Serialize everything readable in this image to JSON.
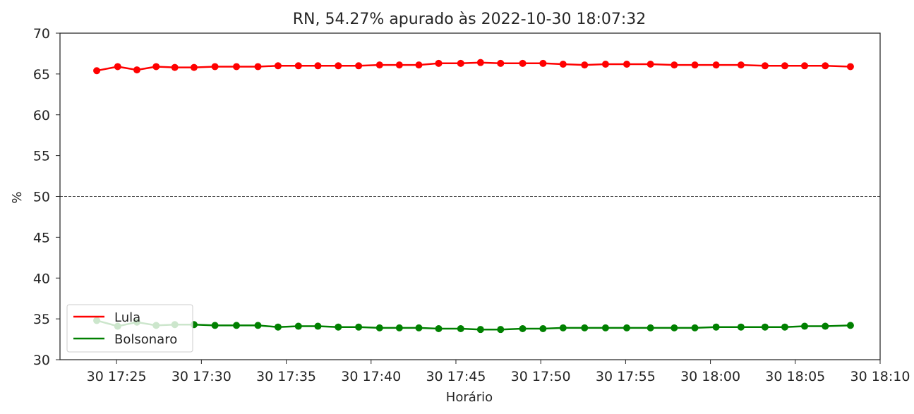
{
  "chart_data": {
    "type": "line",
    "title": "RN, 54.27% apurado às 2022-10-30 18:07:32",
    "xlabel": "Horário",
    "ylabel": "%",
    "ylim": [
      30,
      70
    ],
    "xlim": [
      "2022-10-30 17:21:40",
      "2022-10-30 18:10:00"
    ],
    "y_ticks": [
      30,
      35,
      40,
      45,
      50,
      55,
      60,
      65,
      70
    ],
    "x_ticks": [
      {
        "t": "2022-10-30 17:25:00",
        "label": "30 17:25"
      },
      {
        "t": "2022-10-30 17:30:00",
        "label": "30 17:30"
      },
      {
        "t": "2022-10-30 17:35:00",
        "label": "30 17:35"
      },
      {
        "t": "2022-10-30 17:40:00",
        "label": "30 17:40"
      },
      {
        "t": "2022-10-30 17:45:00",
        "label": "30 17:45"
      },
      {
        "t": "2022-10-30 17:50:00",
        "label": "30 17:50"
      },
      {
        "t": "2022-10-30 17:55:00",
        "label": "30 17:55"
      },
      {
        "t": "2022-10-30 18:00:00",
        "label": "30 18:00"
      },
      {
        "t": "2022-10-30 18:05:00",
        "label": "30 18:05"
      },
      {
        "t": "2022-10-30 18:10:00",
        "label": "30 18:10"
      }
    ],
    "reference_line": {
      "y": 50,
      "style": "dashed",
      "color": "#000000"
    },
    "grid": false,
    "legend_position": "lower-left",
    "x": [
      "2022-10-30 17:23:50",
      "2022-10-30 17:25:04",
      "2022-10-30 17:26:12",
      "2022-10-30 17:27:20",
      "2022-10-30 17:28:26",
      "2022-10-30 17:29:34",
      "2022-10-30 17:30:48",
      "2022-10-30 17:32:04",
      "2022-10-30 17:33:20",
      "2022-10-30 17:34:31",
      "2022-10-30 17:35:43",
      "2022-10-30 17:36:52",
      "2022-10-30 17:38:04",
      "2022-10-30 17:39:16",
      "2022-10-30 17:40:30",
      "2022-10-30 17:41:40",
      "2022-10-30 17:42:49",
      "2022-10-30 17:43:59",
      "2022-10-30 17:45:17",
      "2022-10-30 17:46:27",
      "2022-10-30 17:47:38",
      "2022-10-30 17:48:56",
      "2022-10-30 17:50:08",
      "2022-10-30 17:51:19",
      "2022-10-30 17:52:35",
      "2022-10-30 17:53:49",
      "2022-10-30 17:55:04",
      "2022-10-30 17:56:28",
      "2022-10-30 17:57:52",
      "2022-10-30 17:59:05",
      "2022-10-30 18:00:20",
      "2022-10-30 18:01:48",
      "2022-10-30 18:03:13",
      "2022-10-30 18:04:23",
      "2022-10-30 18:05:33",
      "2022-10-30 18:06:46",
      "2022-10-30 18:08:15"
    ],
    "series": [
      {
        "name": "Lula",
        "color": "#ff0000",
        "values": [
          65.4,
          65.9,
          65.5,
          65.9,
          65.8,
          65.8,
          65.9,
          65.9,
          65.9,
          66.0,
          66.0,
          66.0,
          66.0,
          66.0,
          66.1,
          66.1,
          66.1,
          66.3,
          66.3,
          66.4,
          66.3,
          66.3,
          66.3,
          66.2,
          66.1,
          66.2,
          66.2,
          66.2,
          66.1,
          66.1,
          66.1,
          66.1,
          66.0,
          66.0,
          66.0,
          66.0,
          65.9
        ]
      },
      {
        "name": "Bolsonaro",
        "color": "#008000",
        "values": [
          34.8,
          34.1,
          34.6,
          34.2,
          34.3,
          34.3,
          34.2,
          34.2,
          34.2,
          34.0,
          34.1,
          34.1,
          34.0,
          34.0,
          33.9,
          33.9,
          33.9,
          33.8,
          33.8,
          33.7,
          33.7,
          33.8,
          33.8,
          33.9,
          33.9,
          33.9,
          33.9,
          33.9,
          33.9,
          33.9,
          34.0,
          34.0,
          34.0,
          34.0,
          34.1,
          34.1,
          34.2
        ]
      }
    ]
  }
}
